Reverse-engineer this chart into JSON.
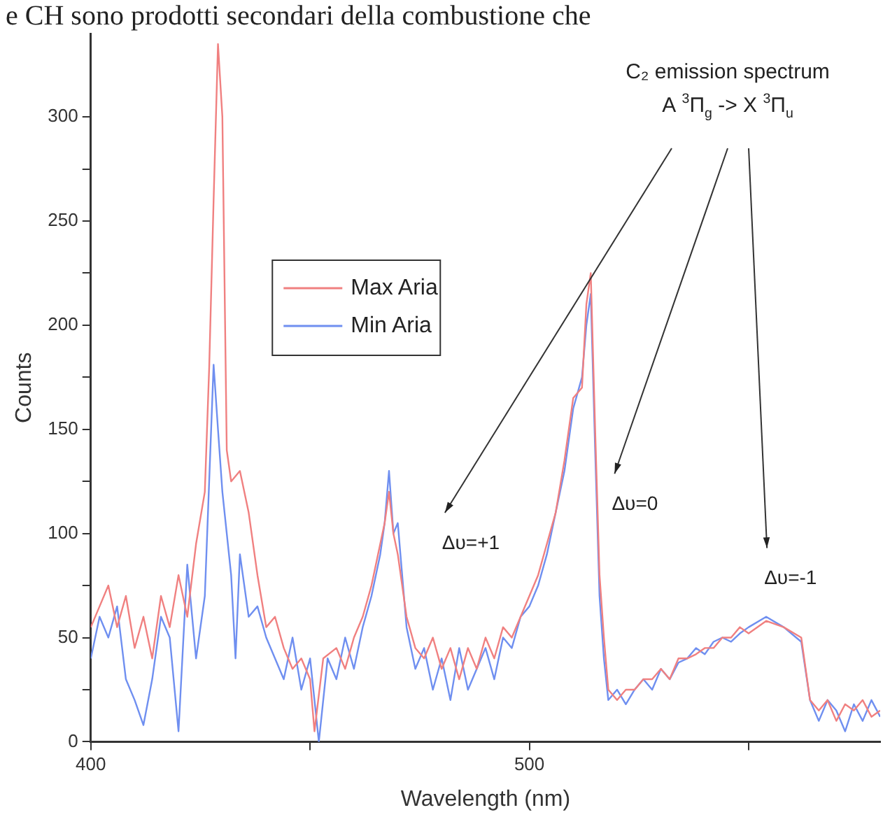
{
  "chart_data": {
    "type": "line",
    "xlabel": "Wavelength (nm)",
    "ylabel": "Counts",
    "xlim": [
      400,
      580
    ],
    "xticks": [
      400,
      {
        "value": 450,
        "label": null
      },
      500,
      {
        "value": 550,
        "label": null
      }
    ],
    "ylim": [
      0,
      340
    ],
    "yticks": [
      0,
      {
        "value": 25,
        "label": null
      },
      50,
      {
        "value": 75,
        "label": null
      },
      100,
      {
        "value": 125,
        "label": null
      },
      150,
      {
        "value": 175,
        "label": null
      },
      200,
      {
        "value": 225,
        "label": null
      },
      250,
      {
        "value": 275,
        "label": null
      },
      300
    ],
    "grid": false,
    "legend": "top left",
    "marker": "none",
    "line_style": "solid",
    "series": [
      {
        "name": "Max Aria",
        "color": "#f08080",
        "x": [
          400,
          402,
          404,
          406,
          408,
          410,
          412,
          414,
          416,
          418,
          420,
          422,
          424,
          426,
          427,
          428,
          429,
          430,
          431,
          432,
          434,
          436,
          438,
          440,
          442,
          444,
          446,
          448,
          450,
          451,
          453,
          456,
          458,
          460,
          462,
          464,
          466,
          467,
          468,
          469,
          470,
          472,
          474,
          476,
          478,
          480,
          482,
          484,
          486,
          488,
          490,
          492,
          494,
          496,
          498,
          500,
          502,
          504,
          506,
          508,
          510,
          512,
          513,
          514,
          515,
          516,
          517,
          518,
          520,
          522,
          524,
          526,
          528,
          530,
          532,
          534,
          536,
          538,
          540,
          542,
          544,
          546,
          548,
          550,
          554,
          558,
          562,
          564,
          566,
          568,
          570,
          572,
          574,
          576,
          578,
          580
        ],
        "values": [
          55,
          65,
          75,
          55,
          70,
          45,
          60,
          40,
          70,
          55,
          80,
          60,
          95,
          120,
          180,
          260,
          335,
          300,
          140,
          125,
          130,
          110,
          80,
          55,
          60,
          45,
          35,
          40,
          30,
          5,
          40,
          45,
          35,
          50,
          60,
          75,
          95,
          105,
          120,
          100,
          90,
          60,
          45,
          40,
          50,
          35,
          45,
          30,
          45,
          35,
          50,
          40,
          55,
          50,
          60,
          70,
          80,
          95,
          110,
          135,
          165,
          170,
          210,
          225,
          150,
          80,
          50,
          25,
          20,
          25,
          25,
          30,
          30,
          35,
          30,
          40,
          40,
          42,
          45,
          45,
          50,
          50,
          55,
          52,
          58,
          55,
          50,
          20,
          15,
          20,
          10,
          18,
          15,
          20,
          12,
          15
        ]
      },
      {
        "name": "Min Aria",
        "color": "#6f8ff0",
        "x": [
          400,
          402,
          404,
          406,
          408,
          410,
          412,
          414,
          416,
          418,
          420,
          422,
          424,
          426,
          428,
          429,
          430,
          432,
          433,
          434,
          436,
          438,
          440,
          442,
          444,
          446,
          448,
          450,
          452,
          454,
          456,
          458,
          460,
          462,
          464,
          466,
          467,
          468,
          469,
          470,
          472,
          474,
          476,
          478,
          480,
          482,
          484,
          486,
          488,
          490,
          492,
          494,
          496,
          498,
          500,
          502,
          504,
          506,
          508,
          510,
          512,
          513,
          514,
          515,
          516,
          517,
          518,
          520,
          522,
          524,
          526,
          528,
          530,
          532,
          534,
          536,
          538,
          540,
          542,
          544,
          546,
          548,
          550,
          554,
          558,
          562,
          564,
          566,
          568,
          570,
          572,
          574,
          576,
          578,
          580
        ],
        "values": [
          40,
          60,
          50,
          65,
          30,
          20,
          8,
          30,
          60,
          50,
          5,
          85,
          40,
          70,
          181,
          150,
          120,
          80,
          40,
          90,
          60,
          65,
          50,
          40,
          30,
          50,
          25,
          40,
          0,
          40,
          30,
          50,
          35,
          55,
          70,
          90,
          105,
          130,
          100,
          105,
          55,
          35,
          45,
          25,
          40,
          20,
          45,
          25,
          35,
          45,
          30,
          50,
          45,
          60,
          65,
          75,
          90,
          110,
          130,
          160,
          175,
          200,
          215,
          140,
          70,
          40,
          20,
          25,
          18,
          25,
          30,
          25,
          35,
          30,
          38,
          40,
          45,
          42,
          48,
          50,
          48,
          52,
          55,
          60,
          55,
          48,
          20,
          10,
          20,
          15,
          5,
          18,
          10,
          20,
          12
        ]
      }
    ],
    "annotations": [
      "e CH sono prodotti secondari della combustione che",
      "C₂ emission spectrum",
      "A $^{3}$Π$_{g}$ -> X $^{3}$Π$_{u}$",
      "Δυ=+1",
      "Δυ=0",
      "Δυ=-1"
    ]
  }
}
